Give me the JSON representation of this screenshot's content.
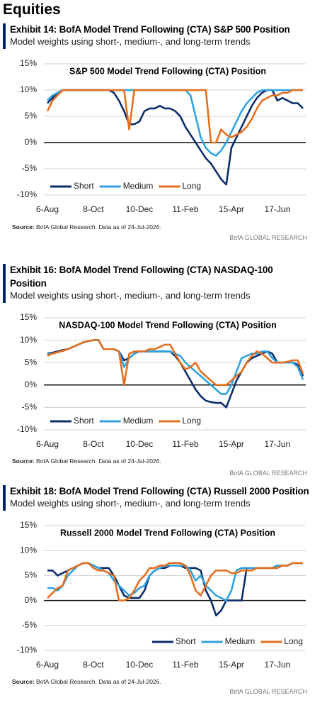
{
  "heading": "Equities",
  "exhibits": [
    {
      "title": "Exhibit 14: BofA Model Trend Following (CTA) S&P 500 Position",
      "subtitle": "Model weights using short-, medium-, and long-term trends",
      "source_label": "Source:",
      "source_text": "BofA Global Research.  Data as of 24-Jul-2026.",
      "brand": "BofA GLOBAL RESEARCH"
    },
    {
      "title": "Exhibit 16: BofA Model Trend Following (CTA) NASDAQ-100 Position",
      "subtitle": "Model weights using short-, medium-, and long-term trends",
      "source_label": "Source:",
      "source_text": "BofA Global Research.  Data as of 24-Jul-2026.",
      "brand": "BofA GLOBAL RESEARCH"
    },
    {
      "title": "Exhibit 18: BofA Model Trend Following (CTA) Russell 2000 Position",
      "subtitle": "Model weights using short-, medium-, and long-term trends",
      "source_label": "Source:",
      "source_text": "BofA Global Research.  Data as of 24-Jul-2026.",
      "brand": "BofA GLOBAL RESEARCH"
    }
  ],
  "chart_data": [
    {
      "type": "line",
      "title": "S&P 500 Model Trend Following (CTA) Position",
      "categories": [
        "6-Aug",
        null,
        null,
        null,
        null,
        null,
        null,
        null,
        null,
        "8-Oct",
        null,
        null,
        null,
        null,
        null,
        null,
        null,
        null,
        "10-Dec",
        null,
        null,
        null,
        null,
        null,
        null,
        null,
        null,
        "11-Feb",
        null,
        null,
        null,
        null,
        null,
        null,
        null,
        null,
        "15-Apr",
        null,
        null,
        null,
        null,
        null,
        null,
        null,
        null,
        "17-Jun",
        null,
        null,
        null,
        null,
        null
      ],
      "ylim": [
        -10,
        15
      ],
      "yticks": [
        {
          "value": -10,
          "label": "-10%"
        },
        {
          "value": -5,
          "label": "-5%"
        },
        {
          "value": 0,
          "label": "0%"
        },
        {
          "value": 5,
          "label": "5%"
        },
        {
          "value": 10,
          "label": "10%"
        },
        {
          "value": 15,
          "label": "15%"
        }
      ],
      "grid": true,
      "legend": "lower left",
      "series": [
        {
          "name": "Short",
          "color": "#0b2d6b",
          "values": [
            7.5,
            8.5,
            9.5,
            10,
            10,
            10,
            10,
            10,
            10,
            10,
            10,
            10,
            10,
            9.5,
            8,
            6,
            3.5,
            3.5,
            4,
            6,
            6.5,
            6.5,
            7,
            6.5,
            6.5,
            6,
            5,
            3,
            1.5,
            0,
            -1.5,
            -3,
            -4,
            -5.5,
            -7,
            -8,
            -1,
            1,
            3,
            5,
            7,
            8.5,
            9.5,
            10,
            10,
            8,
            8.5,
            8,
            7.5,
            7.5,
            6.5
          ]
        },
        {
          "name": "Medium",
          "color": "#2fa3df",
          "values": [
            8,
            9,
            9.5,
            10,
            10,
            10,
            10,
            10,
            10,
            10,
            10,
            10,
            10,
            10,
            10,
            10,
            10,
            10,
            10,
            10,
            10,
            10,
            10,
            10,
            10,
            10,
            10,
            10,
            9,
            5,
            1,
            -1,
            -2,
            -2.5,
            -1.5,
            0,
            2,
            4,
            6,
            7.5,
            8.5,
            9.5,
            10,
            10,
            10,
            10,
            10,
            10,
            10,
            10,
            10
          ]
        },
        {
          "name": "Long",
          "color": "#e46f1f",
          "values": [
            6,
            8,
            9,
            10,
            10,
            10,
            10,
            10,
            10,
            10,
            10,
            10,
            10,
            10,
            10,
            10,
            2.5,
            10,
            10,
            10,
            10,
            10,
            10,
            10,
            10,
            10,
            10,
            10,
            10,
            10,
            10,
            10,
            0,
            0,
            2.5,
            1.5,
            1,
            1.5,
            2,
            3,
            4.5,
            6.5,
            8,
            8.5,
            9,
            9,
            9.5,
            9.5,
            10,
            10,
            10
          ]
        }
      ]
    },
    {
      "type": "line",
      "title": "NASDAQ-100 Model Trend Following (CTA) Position",
      "categories": [
        "6-Aug",
        null,
        null,
        null,
        null,
        null,
        null,
        null,
        null,
        "8-Oct",
        null,
        null,
        null,
        null,
        null,
        null,
        null,
        null,
        "10-Dec",
        null,
        null,
        null,
        null,
        null,
        null,
        null,
        null,
        "11-Feb",
        null,
        null,
        null,
        null,
        null,
        null,
        null,
        null,
        "15-Apr",
        null,
        null,
        null,
        null,
        null,
        null,
        null,
        null,
        "17-Jun",
        null,
        null,
        null,
        null,
        null
      ],
      "ylim": [
        -10,
        15
      ],
      "yticks": [
        {
          "value": -10,
          "label": "-10%"
        },
        {
          "value": -5,
          "label": "-5%"
        },
        {
          "value": 0,
          "label": "0%"
        },
        {
          "value": 5,
          "label": "5%"
        },
        {
          "value": 10,
          "label": "10%"
        },
        {
          "value": 15,
          "label": "15%"
        }
      ],
      "grid": true,
      "legend": "lower left",
      "series": [
        {
          "name": "Short",
          "color": "#0b2d6b",
          "values": [
            7,
            7.2,
            7.5,
            7.8,
            8,
            8.5,
            9,
            9.5,
            9.8,
            10,
            10,
            8,
            8,
            8,
            7.5,
            5.5,
            6,
            7,
            7.5,
            7.5,
            7.5,
            7.5,
            7.5,
            7.5,
            7.5,
            6.5,
            5,
            3,
            1,
            -1,
            -2.5,
            -3.5,
            -3.8,
            -4,
            -4,
            -5,
            -2,
            1,
            3,
            5,
            6,
            6.5,
            7,
            7.5,
            7,
            5,
            5,
            5,
            5,
            4.5,
            2
          ]
        },
        {
          "name": "Medium",
          "color": "#2fa3df",
          "values": [
            6.8,
            7,
            7.3,
            7.6,
            8,
            8.5,
            9,
            9.5,
            9.8,
            10,
            10,
            8,
            8,
            8,
            7.5,
            4,
            6,
            7,
            7.5,
            7.5,
            7.5,
            7.5,
            7.5,
            7.5,
            7.5,
            7,
            6.5,
            5,
            4,
            3,
            2,
            1,
            0,
            -1,
            -2,
            -2,
            0,
            3,
            6,
            6.5,
            7,
            7,
            7.5,
            7.5,
            6,
            5,
            5,
            5,
            5,
            4,
            1.2
          ]
        },
        {
          "name": "Long",
          "color": "#e46f1f",
          "values": [
            6.5,
            7,
            7.3,
            7.6,
            8,
            8.5,
            9,
            9.5,
            9.8,
            10,
            10,
            8,
            8,
            8,
            7.5,
            0,
            7,
            7.5,
            7.5,
            7.5,
            8,
            8,
            8.5,
            9,
            9,
            7,
            5,
            3.5,
            4,
            5,
            3,
            2,
            1,
            0,
            0,
            0,
            1,
            2,
            3,
            5,
            6.5,
            7.5,
            7,
            6,
            5,
            5,
            5,
            5.2,
            5.5,
            5.5,
            2.5
          ]
        }
      ]
    },
    {
      "type": "line",
      "title": "Russell 2000 Model Trend Following (CTA) Position",
      "categories": [
        "6-Aug",
        null,
        null,
        null,
        null,
        null,
        null,
        null,
        null,
        "8-Oct",
        null,
        null,
        null,
        null,
        null,
        null,
        null,
        null,
        "10-Dec",
        null,
        null,
        null,
        null,
        null,
        null,
        null,
        null,
        "11-Feb",
        null,
        null,
        null,
        null,
        null,
        null,
        null,
        null,
        "15-Apr",
        null,
        null,
        null,
        null,
        null,
        null,
        null,
        null,
        "17-Jun",
        null,
        null,
        null,
        null,
        null
      ],
      "ylim": [
        -10,
        15
      ],
      "yticks": [
        {
          "value": -10,
          "label": "-10%"
        },
        {
          "value": -5,
          "label": "-5%"
        },
        {
          "value": 0,
          "label": "0%"
        },
        {
          "value": 5,
          "label": "5%"
        },
        {
          "value": 10,
          "label": "10%"
        },
        {
          "value": 15,
          "label": "15%"
        }
      ],
      "grid": true,
      "legend": "lower right",
      "series": [
        {
          "name": "Short",
          "color": "#0b2d6b",
          "values": [
            6,
            6,
            5,
            5.5,
            6,
            6.5,
            7,
            7.5,
            7.5,
            7,
            6.5,
            6.5,
            6.5,
            5,
            3,
            1,
            0.5,
            0.5,
            0.5,
            2,
            5,
            6,
            6.5,
            6.5,
            7,
            7,
            7,
            6.5,
            6.5,
            6.5,
            6,
            2,
            0,
            -3,
            -2,
            0,
            0,
            0,
            0,
            6.5,
            6.5,
            6.5,
            6.5,
            6.5,
            6.5,
            7,
            7,
            7,
            7.5,
            7.5,
            7.5
          ]
        },
        {
          "name": "Medium",
          "color": "#2fa3df",
          "values": [
            2.5,
            2.5,
            2,
            3,
            5,
            6,
            7,
            7.5,
            7.5,
            7,
            6.5,
            6,
            5.5,
            4,
            3,
            2,
            1,
            1.5,
            2.5,
            3,
            5,
            6,
            6.5,
            7,
            7,
            7,
            7,
            7,
            6,
            4,
            5,
            3,
            2,
            1,
            0.5,
            0,
            2,
            6,
            6.5,
            6.5,
            6.5,
            6.5,
            6.5,
            6.5,
            6.5,
            7,
            7,
            7,
            7.5,
            7.5,
            7.5
          ]
        },
        {
          "name": "Long",
          "color": "#e46f1f",
          "values": [
            0.5,
            1.5,
            2.5,
            3,
            6,
            6.5,
            7,
            7.5,
            7.5,
            6.5,
            6,
            6,
            5.5,
            5,
            0,
            0,
            0.5,
            2,
            4,
            5,
            6.5,
            6.5,
            7,
            7,
            7.5,
            7.5,
            7.5,
            7,
            5,
            2,
            1,
            3,
            5,
            6,
            6,
            6,
            5.5,
            5.5,
            6,
            6,
            6,
            6.5,
            6.5,
            6.5,
            6.5,
            6.5,
            7,
            7,
            7.5,
            7.5,
            7.5
          ]
        }
      ]
    }
  ]
}
